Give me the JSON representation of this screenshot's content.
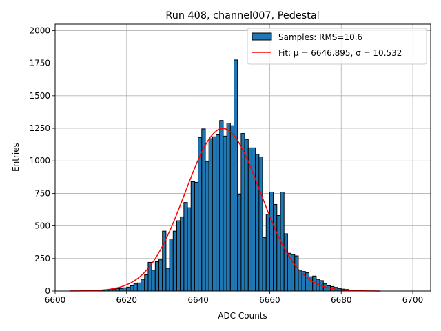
{
  "chart_data": {
    "type": "bar",
    "title": "Run 408, channel007, Pedestal",
    "xlabel": "ADC Counts",
    "ylabel": "Entries",
    "xlim": [
      6600,
      6705
    ],
    "ylim": [
      0,
      2050
    ],
    "x_ticks": [
      6600,
      6620,
      6640,
      6660,
      6680,
      6700
    ],
    "y_ticks": [
      0,
      250,
      500,
      750,
      1000,
      1250,
      1500,
      1750,
      2000
    ],
    "grid": true,
    "legend_position": "top-right",
    "bin_width": 1,
    "series": [
      {
        "name": "Samples: RMS=10.6",
        "kind": "histogram",
        "color": "#1f77b4",
        "edgecolor": "#000000",
        "bins": [
          [
            6612,
            5
          ],
          [
            6613,
            6
          ],
          [
            6614,
            10
          ],
          [
            6615,
            12
          ],
          [
            6616,
            15
          ],
          [
            6617,
            18
          ],
          [
            6618,
            20
          ],
          [
            6619,
            25
          ],
          [
            6620,
            30
          ],
          [
            6621,
            40
          ],
          [
            6622,
            55
          ],
          [
            6623,
            62
          ],
          [
            6624,
            90
          ],
          [
            6625,
            125
          ],
          [
            6626,
            220
          ],
          [
            6627,
            160
          ],
          [
            6628,
            225
          ],
          [
            6629,
            240
          ],
          [
            6630,
            460
          ],
          [
            6631,
            175
          ],
          [
            6632,
            400
          ],
          [
            6633,
            460
          ],
          [
            6634,
            540
          ],
          [
            6635,
            570
          ],
          [
            6636,
            680
          ],
          [
            6637,
            640
          ],
          [
            6638,
            840
          ],
          [
            6639,
            835
          ],
          [
            6640,
            1180
          ],
          [
            6641,
            1245
          ],
          [
            6642,
            995
          ],
          [
            6643,
            1170
          ],
          [
            6644,
            1185
          ],
          [
            6645,
            1200
          ],
          [
            6646,
            1310
          ],
          [
            6647,
            1190
          ],
          [
            6648,
            1290
          ],
          [
            6649,
            1270
          ],
          [
            6650,
            1775
          ],
          [
            6651,
            740
          ],
          [
            6652,
            1210
          ],
          [
            6653,
            1165
          ],
          [
            6654,
            1100
          ],
          [
            6655,
            1100
          ],
          [
            6656,
            1050
          ],
          [
            6657,
            1030
          ],
          [
            6658,
            410
          ],
          [
            6659,
            590
          ],
          [
            6660,
            760
          ],
          [
            6661,
            665
          ],
          [
            6662,
            580
          ],
          [
            6663,
            760
          ],
          [
            6664,
            440
          ],
          [
            6665,
            290
          ],
          [
            6666,
            280
          ],
          [
            6667,
            270
          ],
          [
            6668,
            160
          ],
          [
            6669,
            150
          ],
          [
            6670,
            140
          ],
          [
            6671,
            110
          ],
          [
            6672,
            115
          ],
          [
            6673,
            90
          ],
          [
            6674,
            80
          ],
          [
            6675,
            55
          ],
          [
            6676,
            40
          ],
          [
            6677,
            35
          ],
          [
            6678,
            28
          ],
          [
            6679,
            20
          ],
          [
            6680,
            15
          ],
          [
            6681,
            12
          ],
          [
            6682,
            8
          ],
          [
            6683,
            6
          ]
        ]
      },
      {
        "name": "Fit: μ = 6646.895, σ = 10.532",
        "kind": "gaussian",
        "color": "#ff0000",
        "mu": 6646.895,
        "sigma": 10.532,
        "amplitude": 1248,
        "x_range": [
          6604,
          6691
        ]
      }
    ]
  }
}
